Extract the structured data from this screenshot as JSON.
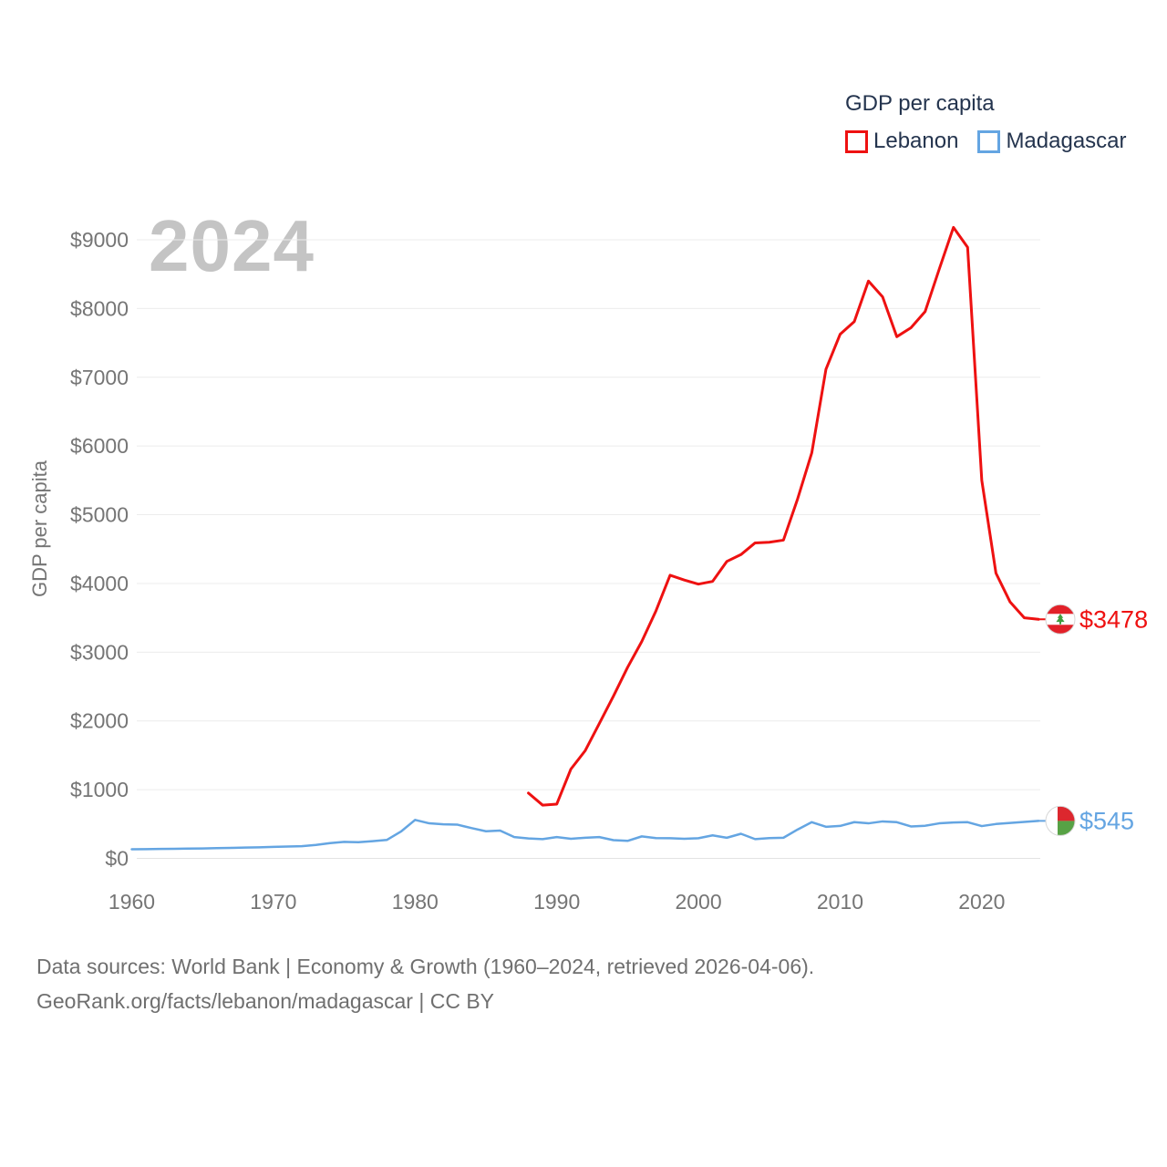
{
  "watermark": "2024",
  "legend": {
    "title": "GDP per capita",
    "items": [
      {
        "label": "Lebanon",
        "color": "#ee1111"
      },
      {
        "label": "Madagascar",
        "color": "#64a5e2"
      }
    ]
  },
  "y_axis": {
    "title": "GDP per capita",
    "tick_labels": [
      "$0",
      "$1000",
      "$2000",
      "$3000",
      "$4000",
      "$5000",
      "$6000",
      "$7000",
      "$8000",
      "$9000"
    ]
  },
  "x_axis": {
    "tick_labels": [
      "1960",
      "1970",
      "1980",
      "1990",
      "2000",
      "2010",
      "2020"
    ]
  },
  "end_labels": [
    {
      "series": "Lebanon",
      "label": "$3478",
      "color": "#ee1111",
      "flag_icon": "lebanon-flag-icon"
    },
    {
      "series": "Madagascar",
      "label": "$545",
      "color": "#64a5e2",
      "flag_icon": "madagascar-flag-icon"
    }
  ],
  "footer": {
    "line1": "Data sources: World Bank | Economy & Growth (1960–2024, retrieved 2026-04-06).",
    "line2": "GeoRank.org/facts/lebanon/madagascar | CC BY"
  },
  "chart_data": {
    "type": "line",
    "title": "GDP per capita",
    "xlabel": "",
    "ylabel": "GDP per capita",
    "xlim": [
      1960,
      2024
    ],
    "ylim": [
      0,
      9000
    ],
    "xticks": [
      1960,
      1970,
      1980,
      1990,
      2000,
      2010,
      2020
    ],
    "yticks": [
      0,
      1000,
      2000,
      3000,
      4000,
      5000,
      6000,
      7000,
      8000,
      9000
    ],
    "grid": "horizontal",
    "legend_position": "top-right",
    "series": [
      {
        "name": "Lebanon",
        "color": "#ee1111",
        "x": [
          1988,
          1989,
          1990,
          1991,
          1992,
          1993,
          1994,
          1995,
          1996,
          1997,
          1998,
          1999,
          2000,
          2001,
          2002,
          2003,
          2004,
          2005,
          2006,
          2007,
          2008,
          2009,
          2010,
          2011,
          2012,
          2013,
          2014,
          2015,
          2016,
          2017,
          2018,
          2019,
          2020,
          2021,
          2022,
          2023,
          2024
        ],
        "values": [
          950,
          775,
          790,
          1300,
          1565,
          1960,
          2360,
          2780,
          3155,
          3600,
          4120,
          4050,
          3990,
          4030,
          4320,
          4420,
          4590,
          4600,
          4630,
          5230,
          5900,
          7115,
          7625,
          7810,
          8400,
          8170,
          7590,
          7720,
          7955,
          8575,
          9180,
          8890,
          5500,
          4150,
          3730,
          3500,
          3478
        ]
      },
      {
        "name": "Madagascar",
        "color": "#64a5e2",
        "x": [
          1960,
          1961,
          1962,
          1963,
          1964,
          1965,
          1966,
          1967,
          1968,
          1969,
          1970,
          1971,
          1972,
          1973,
          1974,
          1975,
          1976,
          1977,
          1978,
          1979,
          1980,
          1981,
          1982,
          1983,
          1984,
          1985,
          1986,
          1987,
          1988,
          1989,
          1990,
          1991,
          1992,
          1993,
          1994,
          1995,
          1996,
          1997,
          1998,
          1999,
          2000,
          2001,
          2002,
          2003,
          2004,
          2005,
          2006,
          2007,
          2008,
          2009,
          2010,
          2011,
          2012,
          2013,
          2014,
          2015,
          2016,
          2017,
          2018,
          2019,
          2020,
          2021,
          2022,
          2023,
          2024
        ],
        "values": [
          132,
          134,
          137,
          139,
          142,
          144,
          149,
          153,
          158,
          161,
          167,
          173,
          178,
          196,
          222,
          240,
          235,
          250,
          268,
          390,
          560,
          510,
          495,
          490,
          440,
          395,
          405,
          310,
          290,
          280,
          310,
          285,
          300,
          310,
          265,
          255,
          320,
          295,
          293,
          285,
          293,
          335,
          300,
          358,
          280,
          295,
          300,
          420,
          527,
          460,
          472,
          527,
          510,
          538,
          527,
          465,
          475,
          510,
          522,
          527,
          470,
          500,
          515,
          530,
          545
        ]
      }
    ],
    "end_values": {
      "Lebanon": 3478,
      "Madagascar": 545
    }
  }
}
